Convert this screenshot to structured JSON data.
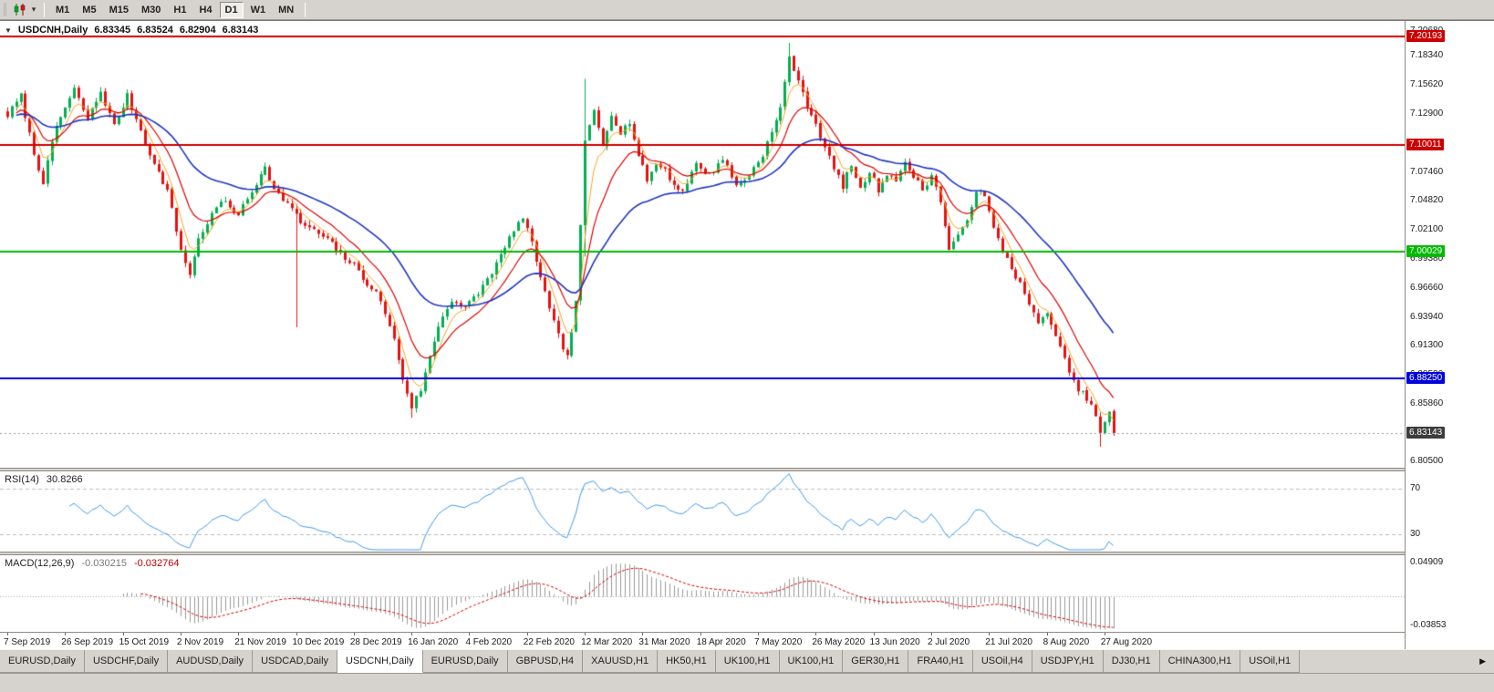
{
  "icons": {
    "collapse": "▼",
    "caret_down": "▾",
    "scroll_right": "▶"
  },
  "toolbar": {
    "timeframes": [
      "M1",
      "M5",
      "M15",
      "M30",
      "H1",
      "H4",
      "D1",
      "W1",
      "MN"
    ],
    "active_timeframe": "D1"
  },
  "chart_data": {
    "type": "candlestick",
    "header": {
      "symbol": "USDCNH,Daily",
      "open": "6.83345",
      "high": "6.83524",
      "low": "6.82904",
      "close": "6.83143"
    },
    "bars": 250,
    "bar_spacing_px": 4.87,
    "y_axis": {
      "min": 6.799,
      "max": 7.216,
      "labels": [
        "7.20680",
        "7.18340",
        "7.15620",
        "7.12900",
        "7.10180",
        "7.07460",
        "7.04820",
        "7.02100",
        "6.99380",
        "6.96660",
        "6.93940",
        "6.91300",
        "6.88580",
        "6.85860",
        "6.83140",
        "6.80500"
      ]
    },
    "x_axis": {
      "bars_per_label": 13,
      "dates": [
        "7 Sep 2019",
        "26 Sep 2019",
        "15 Oct 2019",
        "2 Nov 2019",
        "21 Nov 2019",
        "10 Dec 2019",
        "28 Dec 2019",
        "16 Jan 2020",
        "4 Feb 2020",
        "22 Feb 2020",
        "12 Mar 2020",
        "31 Mar 2020",
        "18 Apr 2020",
        "7 May 2020",
        "26 May 2020",
        "13 Jun 2020",
        "2 Jul 2020",
        "21 Jul 2020",
        "8 Aug 2020",
        "27 Aug 2020"
      ]
    },
    "h_lines": [
      {
        "price": 7.20193,
        "label": "7.20193",
        "color": "#cc0000"
      },
      {
        "price": 7.10011,
        "label": "7.10011",
        "color": "#cc0000"
      },
      {
        "price": 7.00029,
        "label": "7.00029",
        "color": "#00bb00"
      },
      {
        "price": 6.8825,
        "label": "6.88250",
        "color": "#0000dd"
      }
    ],
    "current_price": {
      "price": 6.83143,
      "label": "6.83143",
      "color": "#3c3c3c"
    },
    "candle_colors": {
      "up": "#00b050",
      "down": "#e81010"
    },
    "close_anchors": [
      [
        0,
        7.128
      ],
      [
        3,
        7.146
      ],
      [
        6,
        7.092
      ],
      [
        8,
        7.066
      ],
      [
        11,
        7.118
      ],
      [
        15,
        7.152
      ],
      [
        18,
        7.124
      ],
      [
        21,
        7.15
      ],
      [
        24,
        7.118
      ],
      [
        27,
        7.146
      ],
      [
        30,
        7.114
      ],
      [
        33,
        7.082
      ],
      [
        36,
        7.058
      ],
      [
        39,
        7.002
      ],
      [
        41,
        6.98
      ],
      [
        43,
        7.012
      ],
      [
        45,
        7.028
      ],
      [
        48,
        7.048
      ],
      [
        52,
        7.036
      ],
      [
        55,
        7.056
      ],
      [
        58,
        7.082
      ],
      [
        60,
        7.058
      ],
      [
        63,
        7.046
      ],
      [
        66,
        7.028
      ],
      [
        69,
        7.02
      ],
      [
        72,
        7.012
      ],
      [
        75,
        6.998
      ],
      [
        78,
        6.988
      ],
      [
        80,
        6.976
      ],
      [
        83,
        6.962
      ],
      [
        85,
        6.944
      ],
      [
        87,
        6.918
      ],
      [
        89,
        6.882
      ],
      [
        91,
        6.856
      ],
      [
        93,
        6.872
      ],
      [
        95,
        6.902
      ],
      [
        97,
        6.932
      ],
      [
        100,
        6.956
      ],
      [
        103,
        6.948
      ],
      [
        106,
        6.962
      ],
      [
        109,
        6.982
      ],
      [
        112,
        7.004
      ],
      [
        114,
        7.022
      ],
      [
        116,
        7.032
      ],
      [
        118,
        7.008
      ],
      [
        120,
        6.978
      ],
      [
        122,
        6.946
      ],
      [
        124,
        6.922
      ],
      [
        126,
        6.902
      ],
      [
        128,
        6.952
      ],
      [
        130,
        7.102
      ],
      [
        132,
        7.132
      ],
      [
        134,
        7.1
      ],
      [
        136,
        7.13
      ],
      [
        138,
        7.112
      ],
      [
        140,
        7.122
      ],
      [
        142,
        7.09
      ],
      [
        144,
        7.068
      ],
      [
        146,
        7.082
      ],
      [
        148,
        7.078
      ],
      [
        150,
        7.062
      ],
      [
        152,
        7.058
      ],
      [
        155,
        7.082
      ],
      [
        158,
        7.072
      ],
      [
        161,
        7.088
      ],
      [
        164,
        7.062
      ],
      [
        167,
        7.072
      ],
      [
        170,
        7.092
      ],
      [
        172,
        7.112
      ],
      [
        174,
        7.134
      ],
      [
        176,
        7.184
      ],
      [
        178,
        7.158
      ],
      [
        180,
        7.138
      ],
      [
        182,
        7.12
      ],
      [
        184,
        7.098
      ],
      [
        186,
        7.078
      ],
      [
        188,
        7.062
      ],
      [
        190,
        7.082
      ],
      [
        192,
        7.058
      ],
      [
        194,
        7.076
      ],
      [
        196,
        7.058
      ],
      [
        198,
        7.074
      ],
      [
        200,
        7.068
      ],
      [
        202,
        7.082
      ],
      [
        204,
        7.072
      ],
      [
        206,
        7.058
      ],
      [
        208,
        7.072
      ],
      [
        210,
        7.048
      ],
      [
        212,
        7.002
      ],
      [
        214,
        7.014
      ],
      [
        216,
        7.032
      ],
      [
        218,
        7.058
      ],
      [
        220,
        7.052
      ],
      [
        222,
        7.022
      ],
      [
        224,
        7.002
      ],
      [
        226,
        6.986
      ],
      [
        228,
        6.97
      ],
      [
        230,
        6.952
      ],
      [
        232,
        6.932
      ],
      [
        234,
        6.946
      ],
      [
        236,
        6.92
      ],
      [
        238,
        6.9
      ],
      [
        240,
        6.878
      ],
      [
        242,
        6.868
      ],
      [
        244,
        6.858
      ],
      [
        246,
        6.832
      ],
      [
        248,
        6.85
      ],
      [
        249,
        6.8314
      ]
    ],
    "wick_overrides": [
      [
        65,
        "l",
        6.93
      ],
      [
        91,
        "l",
        6.8455
      ],
      [
        130,
        "h",
        7.162
      ],
      [
        130,
        "l",
        6.996
      ],
      [
        176,
        "h",
        7.1955
      ],
      [
        246,
        "l",
        6.8185
      ]
    ],
    "moving_averages": [
      {
        "period": 5,
        "color": "#f5a623",
        "width": 1
      },
      {
        "period": 12,
        "color": "#e00000",
        "width": 1.2
      },
      {
        "period": 34,
        "color": "#1f35c4",
        "width": 1.6
      }
    ],
    "indicators": {
      "rsi": {
        "label": "RSI(14)",
        "value": "30.8266",
        "color": "#3d9be9",
        "levels": [
          {
            "value": 70,
            "label": "70"
          },
          {
            "value": 30,
            "label": "30"
          }
        ],
        "scale_min": 15,
        "scale_max": 85
      },
      "macd": {
        "label": "MACD(12,26,9)",
        "value_main": "-0.030215",
        "value_signal": "-0.032764",
        "axis_max_label": "0.04909",
        "axis_min_label": "-0.03853",
        "histogram_color": "#9a9a9a",
        "signal_color": "#d40000",
        "scale_min": -0.046,
        "scale_max": 0.052
      }
    }
  },
  "tabs": {
    "items": [
      "EURUSD,Daily",
      "USDCHF,Daily",
      "AUDUSD,Daily",
      "USDCAD,Daily",
      "USDCNH,Daily",
      "EURUSD,Daily",
      "GBPUSD,H4",
      "XAUUSD,H1",
      "HK50,H1",
      "UK100,H1",
      "UK100,H1",
      "GER30,H1",
      "FRA40,H1",
      "USOil,H4",
      "USDJPY,H1",
      "DJ30,H1",
      "CHINA300,H1",
      "USOil,H1"
    ],
    "active_index": 4
  }
}
